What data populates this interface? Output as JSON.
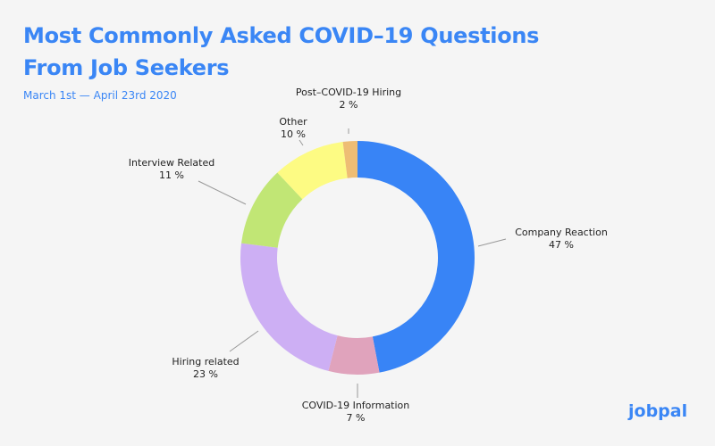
{
  "chart_data": {
    "type": "pie",
    "donut": true,
    "title": "Most Commonly Asked COVID–19 Questions From Job Seekers",
    "title_lines": [
      "Most Commonly Asked COVID–19 Questions",
      "From Job Seekers"
    ],
    "subtitle": "March 1st — April 23rd 2020",
    "slices": [
      {
        "label": "Company Reaction",
        "value": 47,
        "value_label": "47 %",
        "color": "#3884f6"
      },
      {
        "label": "COVID-19 Information",
        "value": 7,
        "value_label": "7 %",
        "color": "#e0a3bc"
      },
      {
        "label": "Hiring related",
        "value": 23,
        "value_label": "23 %",
        "color": "#cdaff4"
      },
      {
        "label": "Interview Related",
        "value": 11,
        "value_label": "11 %",
        "color": "#c1e675"
      },
      {
        "label": "Other",
        "value": 10,
        "value_label": "10 %",
        "color": "#fdfb83"
      },
      {
        "label": "Post–COVID-19 Hiring",
        "value": 2,
        "value_label": "2 %",
        "color": "#eebd74"
      }
    ],
    "legend": "none"
  },
  "brand": {
    "logo": "jobpal",
    "color": "#3a86f5"
  }
}
